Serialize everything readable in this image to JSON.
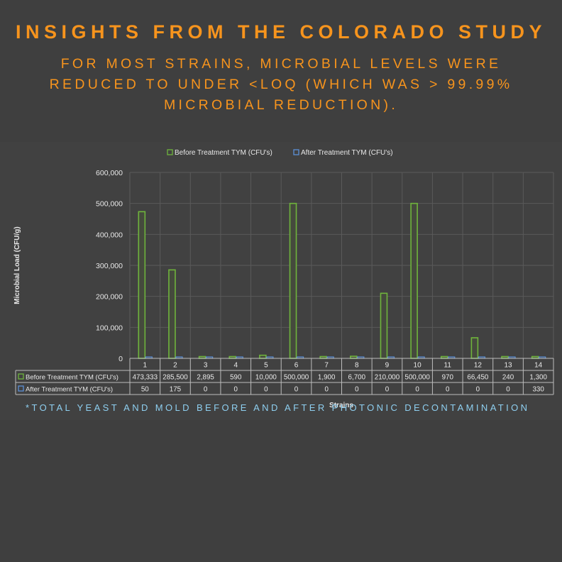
{
  "header": {
    "title": "INSIGHTS FROM THE COLORADO STUDY",
    "subtitle": "FOR MOST STRAINS, MICROBIAL LEVELS WERE REDUCED TO UNDER <LOQ (WHICH WAS > 99.99% MICROBIAL REDUCTION)."
  },
  "footnote": "*TOTAL YEAST AND MOLD BEFORE AND AFTER PHOTONIC DECONTAMINATION",
  "chart_data": {
    "type": "bar",
    "xlabel": "Strains",
    "ylabel": "Microbial Load (CFU/g)",
    "ylim": [
      0,
      600000
    ],
    "yticks": [
      "0",
      "100,000",
      "200,000",
      "300,000",
      "400,000",
      "500,000",
      "600,000"
    ],
    "grid": true,
    "legend_position": "top",
    "categories": [
      "1",
      "2",
      "3",
      "4",
      "5",
      "6",
      "7",
      "8",
      "9",
      "10",
      "11",
      "12",
      "13",
      "14"
    ],
    "series": [
      {
        "name": "Before Treatment TYM (CFU's)",
        "color": "#6fb43c",
        "values": [
          473333,
          285500,
          2895,
          590,
          10000,
          500000,
          1900,
          6700,
          210000,
          500000,
          970,
          66450,
          240,
          1300
        ],
        "labels": [
          "473,333",
          "285,500",
          "2,895",
          "590",
          "10,000",
          "500,000",
          "1,900",
          "6,700",
          "210,000",
          "500,000",
          "970",
          "66,450",
          "240",
          "1,300"
        ]
      },
      {
        "name": "After Treatment TYM (CFU's)",
        "color": "#5b8fd6",
        "values": [
          50,
          175,
          0,
          0,
          0,
          0,
          0,
          0,
          0,
          0,
          0,
          0,
          0,
          330
        ],
        "labels": [
          "50",
          "175",
          "0",
          "0",
          "0",
          "0",
          "0",
          "0",
          "0",
          "0",
          "0",
          "0",
          "0",
          "330"
        ]
      }
    ]
  }
}
